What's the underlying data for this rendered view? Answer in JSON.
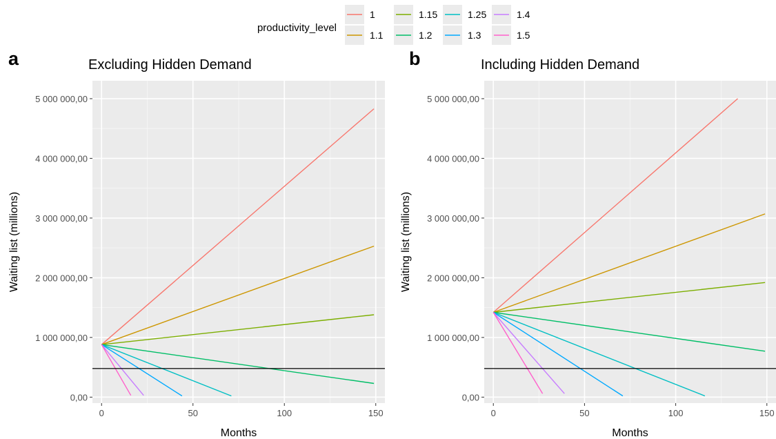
{
  "legend": {
    "title": "productivity_level",
    "items": [
      {
        "label": "1",
        "color": "#F8766D"
      },
      {
        "label": "1.1",
        "color": "#CD9600"
      },
      {
        "label": "1.15",
        "color": "#7CAE00"
      },
      {
        "label": "1.2",
        "color": "#00BE67"
      },
      {
        "label": "1.25",
        "color": "#00BFC4"
      },
      {
        "label": "1.3",
        "color": "#00A9FF"
      },
      {
        "label": "1.4",
        "color": "#C77CFF"
      },
      {
        "label": "1.5",
        "color": "#FF61CC"
      }
    ]
  },
  "chart_data": [
    {
      "type": "line",
      "panel_letter": "a",
      "title": "Excluding Hidden Demand",
      "xlabel": "Months",
      "ylabel": "Waiting list (millions)",
      "xlim": [
        -5,
        155
      ],
      "ylim": [
        -100000,
        5300000
      ],
      "x_ticks": [
        0,
        50,
        100,
        150
      ],
      "y_ticks": [
        0,
        1000000,
        2000000,
        3000000,
        4000000,
        5000000
      ],
      "y_tick_labels": [
        "0,00",
        "1 000 000,00",
        "2 000 000,00",
        "3 000 000,00",
        "4 000 000,00",
        "5 000 000,00"
      ],
      "hline": 480000,
      "grid": true,
      "series": [
        {
          "name": "1",
          "x": [
            0,
            149
          ],
          "values": [
            880000,
            4830000
          ]
        },
        {
          "name": "1.1",
          "x": [
            0,
            149
          ],
          "values": [
            880000,
            2530000
          ]
        },
        {
          "name": "1.15",
          "x": [
            0,
            149
          ],
          "values": [
            880000,
            1380000
          ]
        },
        {
          "name": "1.2",
          "x": [
            0,
            149
          ],
          "values": [
            880000,
            230000
          ]
        },
        {
          "name": "1.25",
          "x": [
            0,
            71
          ],
          "values": [
            880000,
            20000
          ]
        },
        {
          "name": "1.3",
          "x": [
            0,
            44
          ],
          "values": [
            880000,
            20000
          ]
        },
        {
          "name": "1.4",
          "x": [
            0,
            23
          ],
          "values": [
            880000,
            30000
          ]
        },
        {
          "name": "1.5",
          "x": [
            0,
            16
          ],
          "values": [
            880000,
            30000
          ]
        }
      ]
    },
    {
      "type": "line",
      "panel_letter": "b",
      "title": "Including Hidden Demand",
      "xlabel": "Months",
      "ylabel": "Waiting list (millions)",
      "xlim": [
        -5,
        155
      ],
      "ylim": [
        -100000,
        5300000
      ],
      "x_ticks": [
        0,
        50,
        100,
        150
      ],
      "y_ticks": [
        0,
        1000000,
        2000000,
        3000000,
        4000000,
        5000000
      ],
      "y_tick_labels": [
        "0,00",
        "1 000 000,00",
        "2 000 000,00",
        "3 000 000,00",
        "4 000 000,00",
        "5 000 000,00"
      ],
      "hline": 480000,
      "grid": true,
      "series": [
        {
          "name": "1",
          "x": [
            0,
            134
          ],
          "values": [
            1420000,
            5000000
          ]
        },
        {
          "name": "1.1",
          "x": [
            0,
            149
          ],
          "values": [
            1420000,
            3070000
          ]
        },
        {
          "name": "1.15",
          "x": [
            0,
            149
          ],
          "values": [
            1420000,
            1920000
          ]
        },
        {
          "name": "1.2",
          "x": [
            0,
            149
          ],
          "values": [
            1420000,
            770000
          ]
        },
        {
          "name": "1.25",
          "x": [
            0,
            116
          ],
          "values": [
            1420000,
            20000
          ]
        },
        {
          "name": "1.3",
          "x": [
            0,
            71
          ],
          "values": [
            1420000,
            20000
          ]
        },
        {
          "name": "1.4",
          "x": [
            0,
            39
          ],
          "values": [
            1420000,
            60000
          ]
        },
        {
          "name": "1.5",
          "x": [
            0,
            27
          ],
          "values": [
            1420000,
            60000
          ]
        }
      ]
    }
  ]
}
